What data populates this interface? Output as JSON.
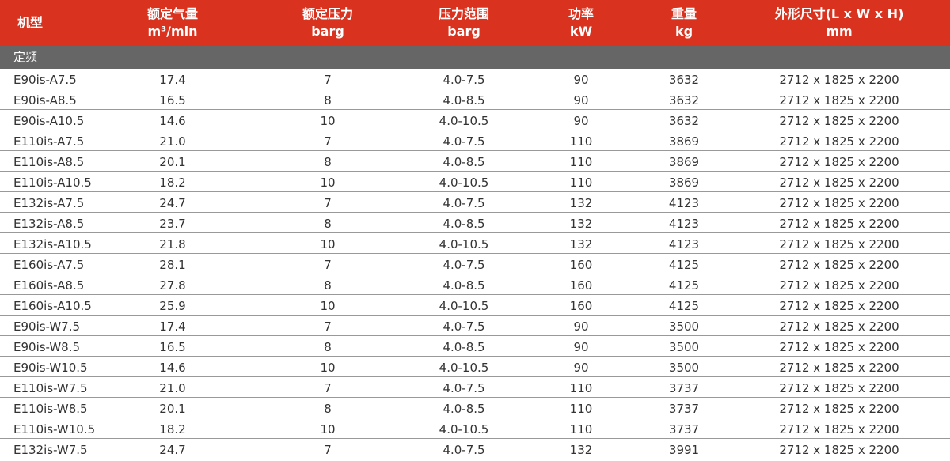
{
  "table": {
    "header": [
      {
        "title": "机型"
      },
      {
        "title": "额定气量",
        "unit": "m³/min"
      },
      {
        "title": "额定压力",
        "unit": "barg"
      },
      {
        "title": "压力范围",
        "unit": "barg"
      },
      {
        "title": "功率",
        "unit": "kW"
      },
      {
        "title": "重量",
        "unit": "kg"
      },
      {
        "title": "外形尺寸(L x W x H)",
        "unit": "mm"
      }
    ],
    "section": "定频",
    "rows": [
      [
        "E90is-A7.5",
        "17.4",
        "7",
        "4.0-7.5",
        "90",
        "3632",
        "2712 x 1825 x 2200"
      ],
      [
        "E90is-A8.5",
        "16.5",
        "8",
        "4.0-8.5",
        "90",
        "3632",
        "2712 x 1825 x 2200"
      ],
      [
        "E90is-A10.5",
        "14.6",
        "10",
        "4.0-10.5",
        "90",
        "3632",
        "2712 x 1825 x 2200"
      ],
      [
        "E110is-A7.5",
        "21.0",
        "7",
        "4.0-7.5",
        "110",
        "3869",
        "2712 x 1825 x 2200"
      ],
      [
        "E110is-A8.5",
        "20.1",
        "8",
        "4.0-8.5",
        "110",
        "3869",
        "2712 x 1825 x 2200"
      ],
      [
        "E110is-A10.5",
        "18.2",
        "10",
        "4.0-10.5",
        "110",
        "3869",
        "2712 x 1825 x 2200"
      ],
      [
        "E132is-A7.5",
        "24.7",
        "7",
        "4.0-7.5",
        "132",
        "4123",
        "2712 x 1825 x 2200"
      ],
      [
        "E132is-A8.5",
        "23.7",
        "8",
        "4.0-8.5",
        "132",
        "4123",
        "2712 x 1825 x 2200"
      ],
      [
        "E132is-A10.5",
        "21.8",
        "10",
        "4.0-10.5",
        "132",
        "4123",
        "2712 x 1825 x 2200"
      ],
      [
        "E160is-A7.5",
        "28.1",
        "7",
        "4.0-7.5",
        "160",
        "4125",
        "2712 x 1825 x 2200"
      ],
      [
        "E160is-A8.5",
        "27.8",
        "8",
        "4.0-8.5",
        "160",
        "4125",
        "2712 x 1825 x 2200"
      ],
      [
        "E160is-A10.5",
        "25.9",
        "10",
        "4.0-10.5",
        "160",
        "4125",
        "2712 x 1825 x 2200"
      ],
      [
        "E90is-W7.5",
        "17.4",
        "7",
        "4.0-7.5",
        "90",
        "3500",
        "2712 x 1825 x 2200"
      ],
      [
        "E90is-W8.5",
        "16.5",
        "8",
        "4.0-8.5",
        "90",
        "3500",
        "2712 x 1825 x 2200"
      ],
      [
        "E90is-W10.5",
        "14.6",
        "10",
        "4.0-10.5",
        "90",
        "3500",
        "2712 x 1825 x 2200"
      ],
      [
        "E110is-W7.5",
        "21.0",
        "7",
        "4.0-7.5",
        "110",
        "3737",
        "2712 x 1825 x 2200"
      ],
      [
        "E110is-W8.5",
        "20.1",
        "8",
        "4.0-8.5",
        "110",
        "3737",
        "2712 x 1825 x 2200"
      ],
      [
        "E110is-W10.5",
        "18.2",
        "10",
        "4.0-10.5",
        "110",
        "3737",
        "2712 x 1825 x 2200"
      ],
      [
        "E132is-W7.5",
        "24.7",
        "7",
        "4.0-7.5",
        "132",
        "3991",
        "2712 x 1825 x 2200"
      ]
    ]
  }
}
